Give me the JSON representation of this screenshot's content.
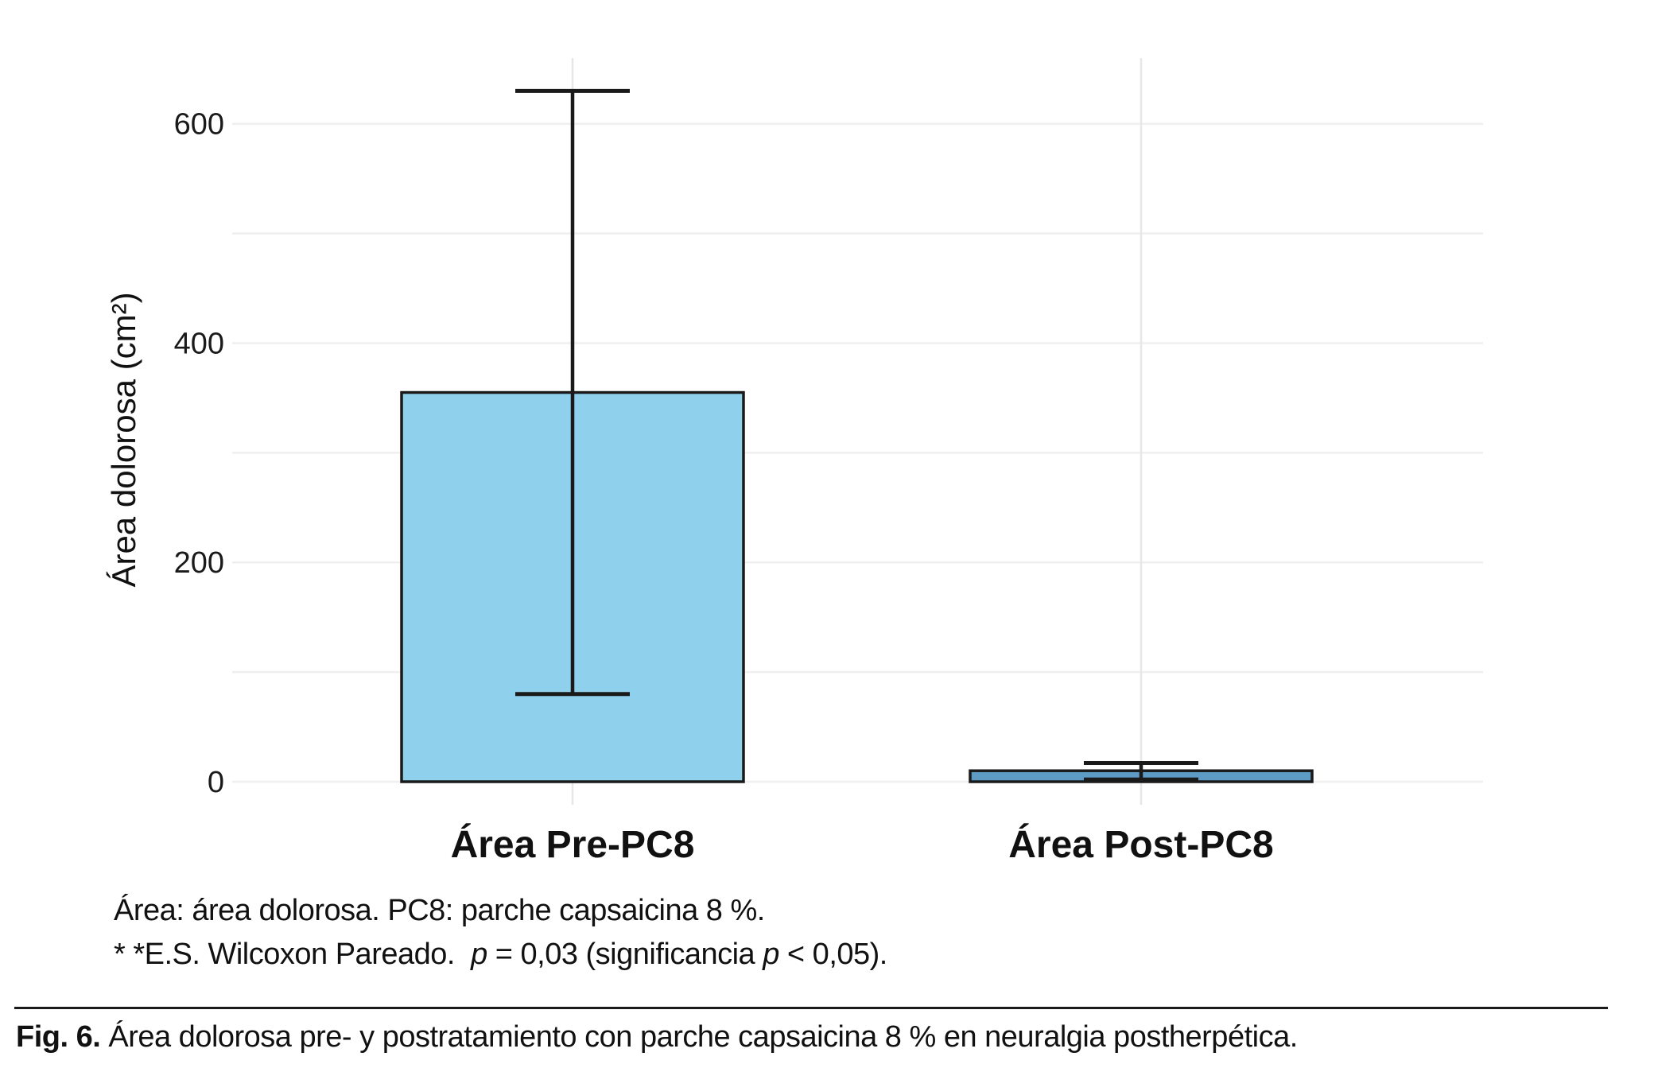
{
  "figure": {
    "footnotes": {
      "line1": "Área: área dolorosa. PC8: parche capsaicina 8 %.",
      "line2_segments": [
        {
          "text": "* *E.S. Wilcoxon Pareado.  ",
          "italic": false
        },
        {
          "text": "p",
          "italic": true
        },
        {
          "text": " = 0,03 (significancia ",
          "italic": false
        },
        {
          "text": "p",
          "italic": true
        },
        {
          "text": " < 0,05).",
          "italic": false
        }
      ]
    },
    "caption": {
      "label": "Fig. 6.",
      "text": " Área dolorosa pre- y postratamiento con parche capsaicina 8 % en neuralgia postherpética."
    }
  },
  "chart_data": {
    "type": "bar",
    "title": "",
    "categories": [
      "Área Pre-PC8",
      "Área Post-PC8"
    ],
    "values": [
      355,
      10
    ],
    "error_bars": [
      {
        "low": 80,
        "high": 630
      },
      {
        "low": 2,
        "high": 17
      }
    ],
    "xlabel": "",
    "ylabel": "Área dolorosa (cm²)",
    "ylim": [
      0,
      660
    ],
    "yticks": [
      0,
      200,
      400,
      600
    ],
    "gridline_step": 100,
    "grid": true,
    "legend": "none",
    "colors": {
      "bar_fills": [
        "#8FD0EC",
        "#5E9BC4"
      ],
      "bar_border": "#1A1A1A",
      "error_bar": "#1A1A1A",
      "gridline": "#EFEFEF",
      "category_gridline": "#E7E7E7",
      "text": "#1A1A1A"
    }
  }
}
